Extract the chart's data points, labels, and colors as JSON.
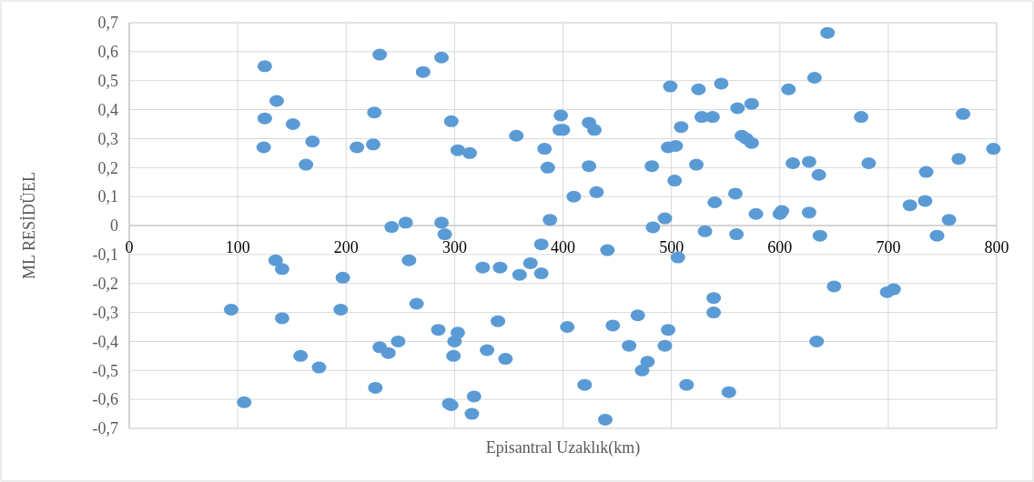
{
  "chart_data": {
    "type": "scatter",
    "xlabel": "Episantral Uzaklık(km)",
    "ylabel": "ML RESİDÜEL",
    "xlim": [
      0,
      800
    ],
    "ylim": [
      -0.7,
      0.7
    ],
    "xticks": [
      0,
      100,
      200,
      300,
      400,
      500,
      600,
      700,
      800
    ],
    "yticks": [
      {
        "value": -0.7,
        "label": "-0,7"
      },
      {
        "value": -0.6,
        "label": "-0,6"
      },
      {
        "value": -0.5,
        "label": "-0,5"
      },
      {
        "value": -0.4,
        "label": "-0,4"
      },
      {
        "value": -0.3,
        "label": "-0,3"
      },
      {
        "value": -0.2,
        "label": "-0,2"
      },
      {
        "value": -0.1,
        "label": "-0,1"
      },
      {
        "value": 0,
        "label": "0"
      },
      {
        "value": 0.1,
        "label": "0,1"
      },
      {
        "value": 0.2,
        "label": "0,2"
      },
      {
        "value": 0.3,
        "label": "0,3"
      },
      {
        "value": 0.4,
        "label": "0,4"
      },
      {
        "value": 0.5,
        "label": "0,5"
      },
      {
        "value": 0.6,
        "label": "0,6"
      },
      {
        "value": 0.7,
        "label": "0,7"
      }
    ],
    "grid": true,
    "marker": "circle",
    "series": [
      {
        "color": "#5b9bd5",
        "x": [
          94,
          106,
          125,
          136,
          125,
          124,
          151,
          169,
          163,
          135,
          141,
          141,
          158,
          175,
          197,
          195,
          210,
          226,
          225,
          231,
          242,
          255,
          258,
          265,
          231,
          239,
          248,
          227,
          271,
          288,
          297,
          303,
          314,
          288,
          291,
          285,
          295,
          297,
          299,
          303,
          300,
          326,
          342,
          370,
          360,
          380,
          380,
          340,
          330,
          347,
          318,
          316,
          404,
          441,
          446,
          420,
          439,
          469,
          461,
          478,
          473,
          497,
          494,
          483,
          494,
          506,
          514,
          531,
          539,
          539,
          560,
          553,
          637,
          634,
          650,
          699,
          705,
          745,
          756,
          357,
          398,
          397,
          400,
          424,
          429,
          383,
          386,
          424,
          410,
          431,
          388,
          482,
          503,
          499,
          525,
          546,
          509,
          528,
          538,
          497,
          504,
          523,
          540,
          559,
          561,
          574,
          565,
          569,
          574,
          578,
          600,
          602,
          608,
          632,
          644,
          612,
          627,
          636,
          627,
          675,
          682,
          735,
          720,
          734,
          765,
          769,
          797
        ],
        "values": [
          -0.29,
          -0.61,
          0.55,
          0.43,
          0.37,
          0.27,
          0.35,
          0.29,
          0.21,
          -0.12,
          -0.15,
          -0.32,
          -0.45,
          -0.49,
          -0.18,
          -0.29,
          0.27,
          0.39,
          0.28,
          0.59,
          -0.005,
          0.01,
          -0.12,
          -0.27,
          -0.42,
          -0.44,
          -0.4,
          -0.56,
          0.53,
          0.58,
          0.36,
          0.26,
          0.25,
          0.01,
          -0.03,
          -0.36,
          -0.615,
          -0.62,
          -0.45,
          -0.37,
          -0.4,
          -0.145,
          -0.145,
          -0.13,
          -0.17,
          -0.165,
          -0.065,
          -0.33,
          -0.43,
          -0.46,
          -0.59,
          -0.65,
          -0.35,
          -0.085,
          -0.345,
          -0.55,
          -0.67,
          -0.31,
          -0.415,
          -0.47,
          -0.5,
          -0.36,
          -0.415,
          -0.006,
          0.025,
          -0.11,
          -0.55,
          -0.02,
          -0.25,
          -0.3,
          -0.03,
          -0.575,
          -0.035,
          -0.4,
          -0.21,
          -0.23,
          -0.22,
          -0.035,
          0.02,
          0.31,
          0.38,
          0.33,
          0.33,
          0.355,
          0.33,
          0.265,
          0.2,
          0.205,
          0.1,
          0.115,
          0.02,
          0.205,
          0.155,
          0.48,
          0.47,
          0.49,
          0.34,
          0.375,
          0.375,
          0.27,
          0.275,
          0.21,
          0.08,
          0.11,
          0.405,
          0.42,
          0.31,
          0.3,
          0.285,
          0.04,
          0.04,
          0.05,
          0.47,
          0.51,
          0.665,
          0.215,
          0.22,
          0.175,
          0.045,
          0.375,
          0.215,
          0.185,
          0.07,
          0.085,
          0.23,
          0.385,
          0.265
        ]
      }
    ]
  }
}
